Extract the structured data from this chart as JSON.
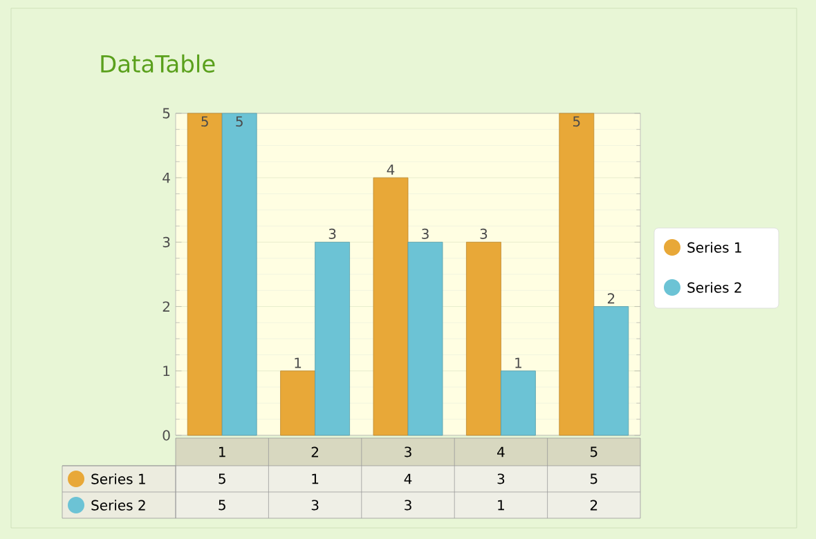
{
  "chart_data": {
    "type": "bar",
    "title": "DataTable",
    "categories": [
      "1",
      "2",
      "3",
      "4",
      "5"
    ],
    "series": [
      {
        "name": "Series 1",
        "color": "#e8a838",
        "values": [
          5,
          1,
          4,
          3,
          5
        ],
        "value_labels": [
          "5",
          "1",
          "4",
          "3",
          "5"
        ]
      },
      {
        "name": "Series 2",
        "color": "#6cc3d5",
        "values": [
          5,
          3,
          3,
          1,
          2
        ],
        "value_labels": [
          "5",
          "3",
          "3",
          "1",
          "2"
        ]
      }
    ],
    "ylim": [
      0,
      5
    ],
    "yticks": [
      0,
      1,
      2,
      3,
      4,
      5
    ],
    "grid": true,
    "legend": "right"
  }
}
